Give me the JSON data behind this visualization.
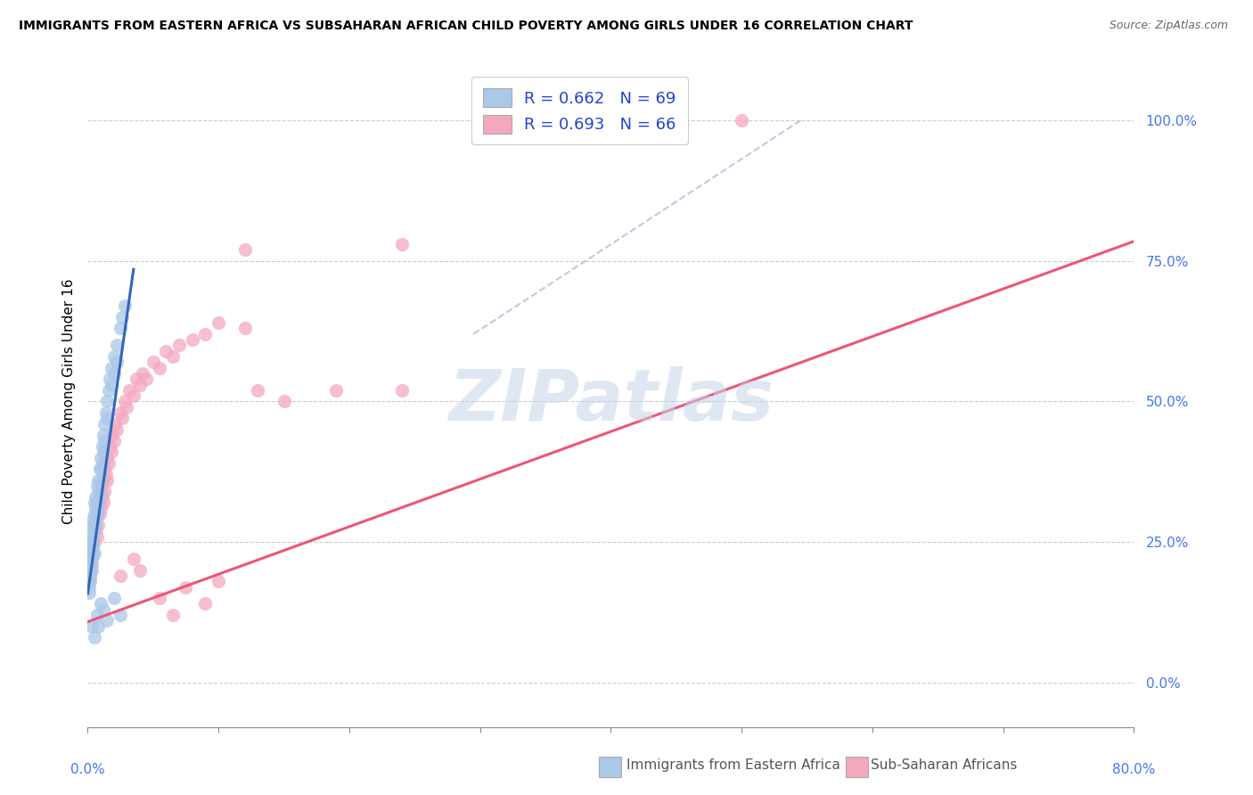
{
  "title": "IMMIGRANTS FROM EASTERN AFRICA VS SUBSAHARAN AFRICAN CHILD POVERTY AMONG GIRLS UNDER 16 CORRELATION CHART",
  "source": "Source: ZipAtlas.com",
  "ylabel": "Child Poverty Among Girls Under 16",
  "ytick_labels": [
    "0.0%",
    "25.0%",
    "50.0%",
    "75.0%",
    "100.0%"
  ],
  "ytick_values": [
    0.0,
    0.25,
    0.5,
    0.75,
    1.0
  ],
  "xmin": 0.0,
  "xmax": 0.8,
  "ymin": -0.08,
  "ymax": 1.08,
  "blue_color": "#aac8e8",
  "pink_color": "#f4a8be",
  "blue_line_color": "#3366bb",
  "pink_line_color": "#ee5577",
  "diagonal_color": "#bbccdd",
  "watermark": "ZIPatlas",
  "watermark_color": "#c5d5e8",
  "blue_line": [
    [
      0.0,
      0.158
    ],
    [
      0.035,
      0.735
    ]
  ],
  "pink_line": [
    [
      0.0,
      0.108
    ],
    [
      0.8,
      0.785
    ]
  ],
  "diagonal_line": [
    [
      0.295,
      0.62
    ],
    [
      0.545,
      1.0
    ]
  ],
  "blue_scatter": [
    [
      0.001,
      0.17
    ],
    [
      0.001,
      0.19
    ],
    [
      0.001,
      0.2
    ],
    [
      0.001,
      0.21
    ],
    [
      0.001,
      0.22
    ],
    [
      0.001,
      0.16
    ],
    [
      0.001,
      0.18
    ],
    [
      0.002,
      0.2
    ],
    [
      0.002,
      0.22
    ],
    [
      0.002,
      0.18
    ],
    [
      0.002,
      0.21
    ],
    [
      0.002,
      0.23
    ],
    [
      0.002,
      0.19
    ],
    [
      0.003,
      0.22
    ],
    [
      0.003,
      0.2
    ],
    [
      0.003,
      0.24
    ],
    [
      0.003,
      0.25
    ],
    [
      0.003,
      0.27
    ],
    [
      0.004,
      0.26
    ],
    [
      0.004,
      0.28
    ],
    [
      0.004,
      0.24
    ],
    [
      0.004,
      0.29
    ],
    [
      0.005,
      0.3
    ],
    [
      0.005,
      0.27
    ],
    [
      0.005,
      0.32
    ],
    [
      0.005,
      0.23
    ],
    [
      0.006,
      0.33
    ],
    [
      0.006,
      0.31
    ],
    [
      0.006,
      0.28
    ],
    [
      0.007,
      0.35
    ],
    [
      0.007,
      0.3
    ],
    [
      0.007,
      0.32
    ],
    [
      0.008,
      0.36
    ],
    [
      0.008,
      0.34
    ],
    [
      0.008,
      0.31
    ],
    [
      0.009,
      0.38
    ],
    [
      0.009,
      0.33
    ],
    [
      0.01,
      0.4
    ],
    [
      0.01,
      0.36
    ],
    [
      0.01,
      0.38
    ],
    [
      0.011,
      0.42
    ],
    [
      0.011,
      0.39
    ],
    [
      0.012,
      0.44
    ],
    [
      0.012,
      0.41
    ],
    [
      0.013,
      0.46
    ],
    [
      0.013,
      0.43
    ],
    [
      0.014,
      0.48
    ],
    [
      0.015,
      0.5
    ],
    [
      0.015,
      0.47
    ],
    [
      0.016,
      0.52
    ],
    [
      0.017,
      0.54
    ],
    [
      0.018,
      0.56
    ],
    [
      0.018,
      0.53
    ],
    [
      0.02,
      0.58
    ],
    [
      0.02,
      0.55
    ],
    [
      0.022,
      0.6
    ],
    [
      0.022,
      0.57
    ],
    [
      0.025,
      0.63
    ],
    [
      0.026,
      0.65
    ],
    [
      0.028,
      0.67
    ],
    [
      0.003,
      0.1
    ],
    [
      0.005,
      0.08
    ],
    [
      0.007,
      0.12
    ],
    [
      0.008,
      0.1
    ],
    [
      0.01,
      0.14
    ],
    [
      0.012,
      0.13
    ],
    [
      0.015,
      0.11
    ],
    [
      0.02,
      0.15
    ],
    [
      0.025,
      0.12
    ]
  ],
  "pink_scatter": [
    [
      0.001,
      0.2
    ],
    [
      0.002,
      0.22
    ],
    [
      0.002,
      0.19
    ],
    [
      0.003,
      0.24
    ],
    [
      0.003,
      0.21
    ],
    [
      0.004,
      0.26
    ],
    [
      0.004,
      0.23
    ],
    [
      0.005,
      0.28
    ],
    [
      0.005,
      0.25
    ],
    [
      0.006,
      0.27
    ],
    [
      0.007,
      0.3
    ],
    [
      0.007,
      0.26
    ],
    [
      0.008,
      0.32
    ],
    [
      0.008,
      0.28
    ],
    [
      0.009,
      0.3
    ],
    [
      0.01,
      0.34
    ],
    [
      0.01,
      0.31
    ],
    [
      0.011,
      0.33
    ],
    [
      0.012,
      0.36
    ],
    [
      0.012,
      0.32
    ],
    [
      0.013,
      0.38
    ],
    [
      0.013,
      0.34
    ],
    [
      0.014,
      0.37
    ],
    [
      0.015,
      0.4
    ],
    [
      0.015,
      0.36
    ],
    [
      0.016,
      0.39
    ],
    [
      0.017,
      0.42
    ],
    [
      0.018,
      0.41
    ],
    [
      0.019,
      0.44
    ],
    [
      0.02,
      0.43
    ],
    [
      0.021,
      0.46
    ],
    [
      0.022,
      0.45
    ],
    [
      0.025,
      0.48
    ],
    [
      0.026,
      0.47
    ],
    [
      0.028,
      0.5
    ],
    [
      0.03,
      0.49
    ],
    [
      0.032,
      0.52
    ],
    [
      0.035,
      0.51
    ],
    [
      0.037,
      0.54
    ],
    [
      0.04,
      0.53
    ],
    [
      0.042,
      0.55
    ],
    [
      0.045,
      0.54
    ],
    [
      0.05,
      0.57
    ],
    [
      0.055,
      0.56
    ],
    [
      0.06,
      0.59
    ],
    [
      0.065,
      0.58
    ],
    [
      0.07,
      0.6
    ],
    [
      0.08,
      0.61
    ],
    [
      0.09,
      0.62
    ],
    [
      0.1,
      0.64
    ],
    [
      0.12,
      0.63
    ],
    [
      0.025,
      0.19
    ],
    [
      0.035,
      0.22
    ],
    [
      0.04,
      0.2
    ],
    [
      0.055,
      0.15
    ],
    [
      0.065,
      0.12
    ],
    [
      0.075,
      0.17
    ],
    [
      0.09,
      0.14
    ],
    [
      0.1,
      0.18
    ],
    [
      0.13,
      0.52
    ],
    [
      0.15,
      0.5
    ],
    [
      0.19,
      0.52
    ],
    [
      0.24,
      0.52
    ],
    [
      0.31,
      1.0
    ],
    [
      0.5,
      1.0
    ],
    [
      0.12,
      0.77
    ],
    [
      0.24,
      0.78
    ]
  ]
}
